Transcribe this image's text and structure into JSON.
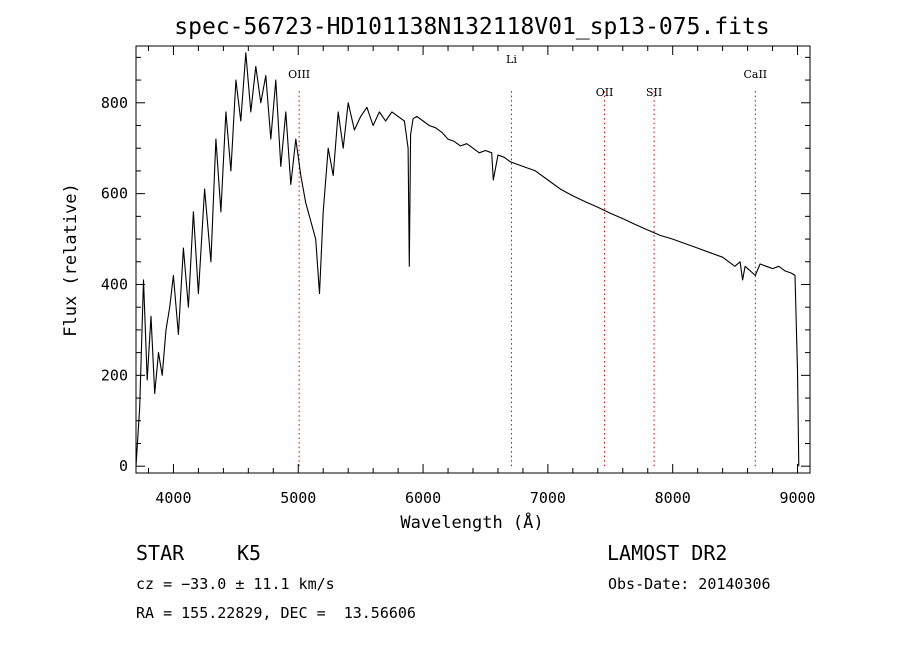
{
  "chart_data": {
    "type": "line",
    "title": "spec-56723-HD101138N132118V01_sp13-075.fits",
    "xlabel": "Wavelength (Å)",
    "ylabel": "Flux (relative)",
    "xlim": [
      3700,
      9100
    ],
    "ylim": [
      -15,
      925
    ],
    "x_ticks": [
      4000,
      5000,
      6000,
      7000,
      8000,
      9000
    ],
    "y_ticks": [
      0,
      200,
      400,
      600,
      800
    ],
    "grid": false,
    "series": [
      {
        "x": [
          3700,
          3730,
          3760,
          3790,
          3820,
          3850,
          3880,
          3910,
          3940,
          3970,
          4000,
          4040,
          4080,
          4120,
          4160,
          4200,
          4250,
          4300,
          4340,
          4380,
          4420,
          4460,
          4500,
          4540,
          4580,
          4620,
          4660,
          4700,
          4740,
          4780,
          4820,
          4860,
          4900,
          4940,
          4980,
          5020,
          5060,
          5100,
          5140,
          5170,
          5200,
          5240,
          5280,
          5320,
          5360,
          5400,
          5450,
          5500,
          5550,
          5600,
          5650,
          5700,
          5750,
          5800,
          5850,
          5880,
          5890,
          5900,
          5920,
          5950,
          6000,
          6050,
          6100,
          6150,
          6200,
          6250,
          6300,
          6350,
          6400,
          6450,
          6500,
          6550,
          6563,
          6600,
          6650,
          6700,
          6750,
          6800,
          6850,
          6900,
          7000,
          7100,
          7200,
          7300,
          7400,
          7500,
          7600,
          7700,
          7800,
          7900,
          8000,
          8100,
          8200,
          8300,
          8400,
          8498,
          8540,
          8560,
          8580,
          8662,
          8700,
          8750,
          8800,
          8850,
          8900,
          8950,
          8980,
          9000,
          9010
        ],
        "y": [
          0,
          130,
          410,
          190,
          330,
          160,
          250,
          200,
          300,
          350,
          420,
          290,
          480,
          350,
          560,
          380,
          610,
          450,
          720,
          560,
          780,
          650,
          850,
          760,
          910,
          780,
          880,
          800,
          860,
          720,
          850,
          660,
          780,
          620,
          720,
          640,
          580,
          540,
          500,
          380,
          560,
          700,
          640,
          780,
          700,
          800,
          740,
          770,
          790,
          750,
          780,
          760,
          780,
          770,
          760,
          700,
          440,
          730,
          765,
          770,
          760,
          750,
          745,
          735,
          720,
          715,
          705,
          710,
          700,
          690,
          695,
          690,
          630,
          685,
          680,
          670,
          665,
          660,
          655,
          650,
          630,
          610,
          595,
          582,
          570,
          557,
          545,
          532,
          520,
          508,
          500,
          490,
          480,
          470,
          460,
          440,
          450,
          410,
          440,
          420,
          445,
          440,
          435,
          440,
          430,
          425,
          420,
          210,
          0
        ]
      }
    ],
    "line_markers": [
      {
        "label": "OIII",
        "x": 5007
      },
      {
        "label": "Li",
        "x": 6708
      },
      {
        "label": "OII",
        "x": 7454
      },
      {
        "label": "SII",
        "x": 7851
      },
      {
        "label": "CaII",
        "x": 8662
      }
    ],
    "marker_color": "#cc0000",
    "line_color": "#000000"
  },
  "info": {
    "object_class": "STAR",
    "subclass": "K5",
    "survey": "LAMOST DR2",
    "cz": "cz = −33.0 ± 11.1 km/s",
    "obs_date": "Obs-Date: 20140306",
    "coords": "RA = 155.22829, DEC =  13.56606"
  }
}
